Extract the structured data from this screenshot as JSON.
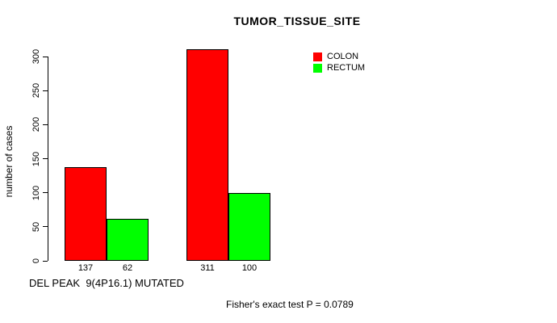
{
  "chart_data": {
    "type": "bar",
    "title": "TUMOR_TISSUE_SITE",
    "xlabel": "DEL PEAK  9(4P16.1) MUTATED",
    "ylabel": "number of cases",
    "ylim": [
      0,
      300
    ],
    "yticks": [
      0,
      50,
      100,
      150,
      200,
      250,
      300
    ],
    "grid": false,
    "legend_position": "top-right-inside",
    "series": [
      {
        "name": "COLON",
        "color": "#ff0000",
        "values": [
          137,
          311
        ]
      },
      {
        "name": "RECTUM",
        "color": "#00ff00",
        "values": [
          62,
          100
        ]
      }
    ],
    "value_labels": [
      "137",
      "62",
      "311",
      "100"
    ],
    "annotation": "Fisher's exact test P = 0.0789"
  },
  "colors": {
    "background": "#ffffff",
    "axis": "#000000",
    "text": "#000000",
    "bar_border": "#000000",
    "colon": "#ff0000",
    "rectum": "#00ff00"
  }
}
